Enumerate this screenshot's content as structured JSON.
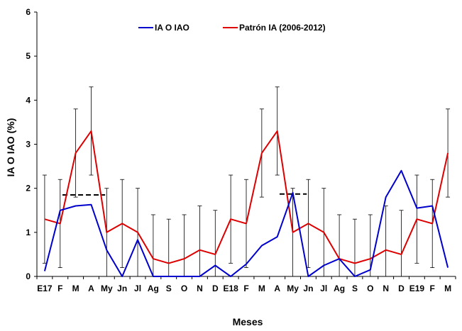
{
  "chart_data": {
    "type": "line",
    "xlabel": "Meses",
    "ylabel": "IA O IAO (%)",
    "ylim": [
      0,
      6
    ],
    "yticks": [
      "0",
      "1",
      "2",
      "3",
      "4",
      "5",
      "6"
    ],
    "categories": [
      "E17",
      "F",
      "M",
      "A",
      "My",
      "Jn",
      "Jl",
      "Ag",
      "S",
      "O",
      "N",
      "D",
      "E18",
      "F",
      "M",
      "A",
      "My",
      "Jn",
      "Jl",
      "Ag",
      "S",
      "O",
      "N",
      "D",
      "E19",
      "F",
      "M"
    ],
    "legend_position": "top",
    "series": [
      {
        "name": "IA O IAO",
        "color": "#0000CC",
        "values": [
          0.12,
          1.5,
          1.6,
          1.63,
          0.6,
          0.0,
          0.83,
          0.0,
          0.0,
          0.0,
          0.0,
          0.25,
          0.0,
          0.28,
          0.7,
          0.9,
          1.9,
          0.0,
          0.25,
          0.4,
          0.0,
          0.15,
          1.8,
          2.4,
          1.55,
          1.6,
          0.2
        ]
      },
      {
        "name": "Patrón IA (2006-2012)",
        "color": "#DD0000",
        "values": [
          1.3,
          1.2,
          2.8,
          3.3,
          1.0,
          1.2,
          1.0,
          0.4,
          0.3,
          0.4,
          0.6,
          0.5,
          1.3,
          1.2,
          2.8,
          3.3,
          1.0,
          1.2,
          1.0,
          0.4,
          0.3,
          0.4,
          0.6,
          0.5,
          1.3,
          1.2,
          2.8
        ],
        "error_low": [
          0.3,
          0.2,
          1.8,
          2.3,
          0.0,
          0.2,
          0.0,
          0.0,
          0.0,
          0.0,
          0.0,
          0.0,
          0.3,
          0.2,
          1.8,
          2.3,
          0.0,
          0.2,
          0.0,
          0.0,
          0.0,
          0.0,
          0.0,
          0.0,
          0.3,
          0.2,
          1.8
        ],
        "error_high": [
          2.3,
          2.2,
          3.8,
          4.3,
          2.0,
          2.2,
          2.0,
          1.4,
          1.3,
          1.4,
          1.6,
          1.5,
          2.3,
          2.2,
          3.8,
          4.3,
          2.0,
          2.2,
          2.0,
          1.4,
          1.3,
          1.4,
          1.6,
          1.5,
          2.3,
          2.2,
          3.8
        ]
      }
    ],
    "reference_lines": [
      {
        "from_index": 1,
        "to_index": 4,
        "value": 1.85
      },
      {
        "from_index": 15,
        "to_index": 17,
        "value": 1.87
      }
    ]
  }
}
